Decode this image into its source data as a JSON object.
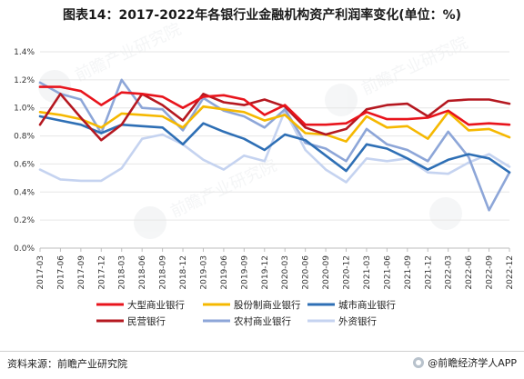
{
  "title": "图表14：2017-2022年各银行业金融机构资产利润率变化(单位：%)",
  "source": "资料来源：前瞻产业研究院",
  "credit": "@前瞻经济学人APP",
  "chart_data": {
    "type": "line",
    "x": [
      "2017-03",
      "2017-06",
      "2017-09",
      "2017-12",
      "2018-03",
      "2018-06",
      "2018-09",
      "2018-12",
      "2019-03",
      "2019-06",
      "2019-09",
      "2019-12",
      "2020-03",
      "2020-06",
      "2020-09",
      "2020-12",
      "2021-03",
      "2021-06",
      "2021-09",
      "2021-12",
      "2022-03",
      "2022-06",
      "2022-09",
      "2022-12"
    ],
    "ylim": [
      0,
      1.4
    ],
    "yticks": [
      0,
      0.2,
      0.4,
      0.6,
      0.8,
      1.0,
      1.2,
      1.4
    ],
    "ytick_labels": [
      "0.0%",
      "0.2%",
      "0.4%",
      "0.6%",
      "0.8%",
      "1.0%",
      "1.2%",
      "1.4%"
    ],
    "grid": true,
    "legend_position": "bottom",
    "series": [
      {
        "name": "大型商业银行",
        "color": "#e8141c",
        "values": [
          1.15,
          1.15,
          1.12,
          1.02,
          1.11,
          1.1,
          1.08,
          1.0,
          1.08,
          1.09,
          1.06,
          0.95,
          1.02,
          0.88,
          0.88,
          0.89,
          0.97,
          0.92,
          0.92,
          0.93,
          0.98,
          0.88,
          0.89,
          0.88
        ]
      },
      {
        "name": "股份制商业银行",
        "color": "#f5b800",
        "values": [
          0.97,
          0.95,
          0.92,
          0.86,
          0.96,
          0.95,
          0.94,
          0.86,
          1.01,
          0.99,
          0.97,
          0.91,
          0.95,
          0.82,
          0.81,
          0.76,
          0.94,
          0.86,
          0.87,
          0.78,
          0.97,
          0.84,
          0.85,
          0.79
        ]
      },
      {
        "name": "城市商业银行",
        "color": "#2e6fb5",
        "values": [
          0.94,
          0.91,
          0.88,
          0.82,
          0.88,
          0.87,
          0.86,
          0.74,
          0.89,
          0.83,
          0.78,
          0.7,
          0.81,
          0.77,
          0.66,
          0.55,
          0.74,
          0.71,
          0.64,
          0.56,
          0.63,
          0.67,
          0.64,
          0.54
        ]
      },
      {
        "name": "民营银行",
        "color": "#b51820",
        "values": [
          0.88,
          1.1,
          0.93,
          0.77,
          0.88,
          1.1,
          1.02,
          0.91,
          1.1,
          1.04,
          1.02,
          1.06,
          1.01,
          0.86,
          0.81,
          0.85,
          0.99,
          1.02,
          1.03,
          0.94,
          1.05,
          1.06,
          1.06,
          1.03
        ]
      },
      {
        "name": "农村商业银行",
        "color": "#8da6d8",
        "values": [
          1.18,
          1.1,
          1.06,
          0.82,
          1.2,
          1.0,
          0.99,
          0.84,
          1.07,
          0.98,
          0.94,
          0.86,
          0.99,
          0.75,
          0.71,
          0.62,
          0.85,
          0.74,
          0.7,
          0.62,
          0.83,
          0.65,
          0.27,
          0.54
        ]
      },
      {
        "name": "外资银行",
        "color": "#c5d3f0",
        "values": [
          0.56,
          0.49,
          0.48,
          0.48,
          0.57,
          0.78,
          0.81,
          0.74,
          0.63,
          0.56,
          0.66,
          0.62,
          0.98,
          0.7,
          0.56,
          0.47,
          0.64,
          0.62,
          0.64,
          0.54,
          0.53,
          0.61,
          0.67,
          0.58
        ]
      }
    ]
  }
}
